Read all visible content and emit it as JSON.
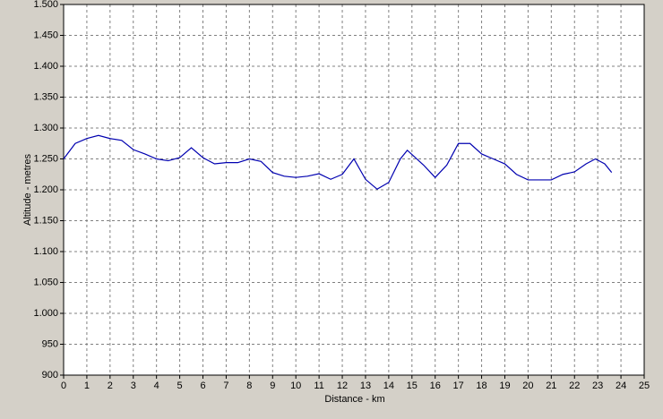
{
  "chart_data": {
    "type": "line",
    "xlabel": "Distance - km",
    "ylabel": "Altitude - metres",
    "x": [
      0,
      0.5,
      1,
      1.5,
      2,
      2.5,
      3,
      3.5,
      4,
      4.5,
      5,
      5.5,
      6,
      6.5,
      7,
      7.5,
      8,
      8.5,
      9,
      9.5,
      10,
      10.5,
      11,
      11.5,
      12,
      12.5,
      13,
      13.5,
      14,
      14.5,
      14.8,
      15.5,
      16,
      16.5,
      17,
      17.5,
      18,
      18.5,
      19,
      19.5,
      20,
      21,
      21.5,
      22,
      22.5,
      22.9,
      23.3,
      23.6
    ],
    "series": [
      {
        "color": "#0000b0",
        "values": [
          1250,
          1275,
          1283,
          1288,
          1283,
          1280,
          1265,
          1258,
          1250,
          1247,
          1252,
          1268,
          1252,
          1242,
          1244,
          1244,
          1250,
          1246,
          1228,
          1222,
          1220,
          1222,
          1226,
          1217,
          1225,
          1250,
          1217,
          1201,
          1212,
          1250,
          1264,
          1240,
          1220,
          1240,
          1275,
          1275,
          1258,
          1250,
          1242,
          1225,
          1216,
          1216,
          1225,
          1229,
          1242,
          1250,
          1242,
          1228
        ]
      }
    ],
    "xlim": [
      0,
      25
    ],
    "xticks": [
      0,
      1,
      2,
      3,
      4,
      5,
      6,
      7,
      8,
      9,
      10,
      11,
      12,
      13,
      14,
      15,
      16,
      17,
      18,
      19,
      20,
      21,
      22,
      23,
      24,
      25
    ],
    "ylim": [
      900,
      1500
    ],
    "yticks": [
      900,
      950,
      {
        "value": 1000,
        "label": "1.000"
      },
      {
        "value": 1050,
        "label": "1.050"
      },
      {
        "value": 1100,
        "label": "1.100"
      },
      {
        "value": 1150,
        "label": "1.150"
      },
      {
        "value": 1200,
        "label": "1.200"
      },
      {
        "value": 1250,
        "label": "1.250"
      },
      {
        "value": 1300,
        "label": "1.300"
      },
      {
        "value": 1350,
        "label": "1.350"
      },
      {
        "value": 1400,
        "label": "1.400"
      },
      {
        "value": 1450,
        "label": "1.450"
      },
      {
        "value": 1500,
        "label": "1.500"
      }
    ],
    "grid": true
  }
}
